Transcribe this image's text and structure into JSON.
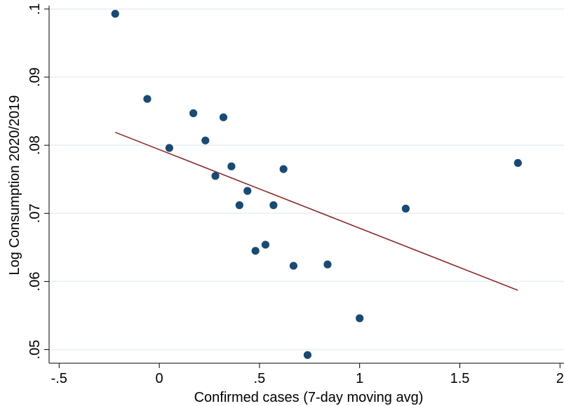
{
  "chart_data": {
    "type": "scatter",
    "xlabel": "Confirmed cases (7-day moving avg)",
    "ylabel": "Log Consumption 2020/2019",
    "xlim": [
      -0.55,
      2.02
    ],
    "ylim": [
      0.048,
      0.1005
    ],
    "xticks": [
      {
        "value": -0.5,
        "label": "-.5"
      },
      {
        "value": 0,
        "label": "0"
      },
      {
        "value": 0.5,
        "label": ".5"
      },
      {
        "value": 1,
        "label": "1"
      },
      {
        "value": 1.5,
        "label": "1.5"
      },
      {
        "value": 2,
        "label": "2"
      }
    ],
    "yticks": [
      {
        "value": 0.05,
        "label": ".05"
      },
      {
        "value": 0.06,
        "label": ".06"
      },
      {
        "value": 0.07,
        "label": ".07"
      },
      {
        "value": 0.08,
        "label": ".08"
      },
      {
        "value": 0.09,
        "label": ".09"
      },
      {
        "value": 0.1,
        "label": ".1"
      }
    ],
    "grid": "horizontal",
    "colors": {
      "points": "#1a4a72",
      "fit_line": "#8b2a2a",
      "grid": "#e8eef2",
      "axis": "#000000"
    },
    "series": [
      {
        "kind": "points",
        "points": [
          {
            "x": -0.22,
            "y": 0.0993
          },
          {
            "x": -0.06,
            "y": 0.0868
          },
          {
            "x": 0.05,
            "y": 0.0796
          },
          {
            "x": 0.17,
            "y": 0.0847
          },
          {
            "x": 0.23,
            "y": 0.0807
          },
          {
            "x": 0.28,
            "y": 0.0755
          },
          {
            "x": 0.32,
            "y": 0.0841
          },
          {
            "x": 0.36,
            "y": 0.0769
          },
          {
            "x": 0.4,
            "y": 0.0712
          },
          {
            "x": 0.44,
            "y": 0.0733
          },
          {
            "x": 0.48,
            "y": 0.0645
          },
          {
            "x": 0.53,
            "y": 0.0654
          },
          {
            "x": 0.57,
            "y": 0.0712
          },
          {
            "x": 0.62,
            "y": 0.0765
          },
          {
            "x": 0.67,
            "y": 0.0623
          },
          {
            "x": 0.74,
            "y": 0.0492
          },
          {
            "x": 0.84,
            "y": 0.0625
          },
          {
            "x": 1.0,
            "y": 0.0546
          },
          {
            "x": 1.23,
            "y": 0.0707
          },
          {
            "x": 1.79,
            "y": 0.0774
          }
        ]
      },
      {
        "kind": "fit-line",
        "points": [
          {
            "x": -0.22,
            "y": 0.0819
          },
          {
            "x": 1.79,
            "y": 0.0587
          }
        ]
      }
    ]
  }
}
